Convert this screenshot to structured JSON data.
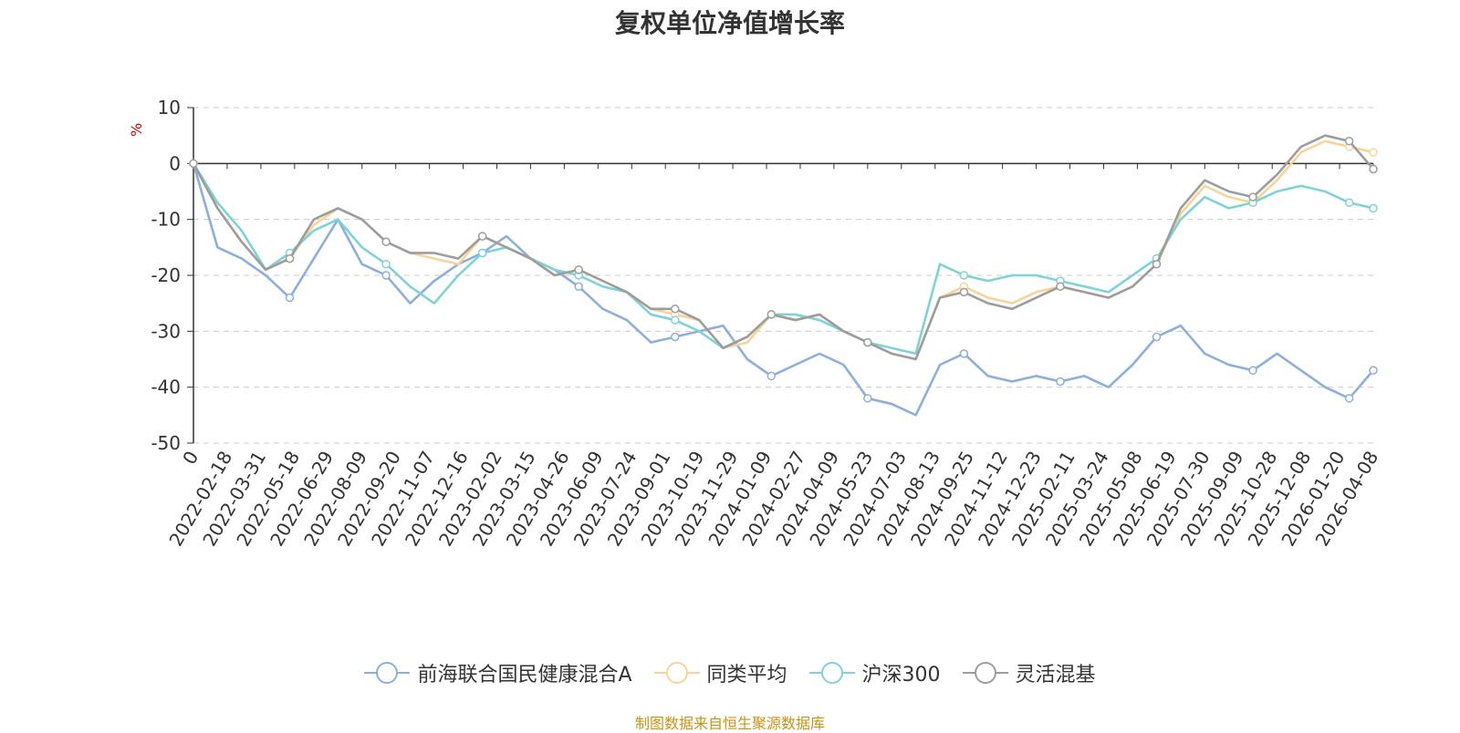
{
  "chart_data": {
    "type": "line",
    "title": "复权单位净值增长率",
    "ylabel": "%",
    "ylim": [
      -50,
      10
    ],
    "yticks": [
      "10",
      "0",
      "-10",
      "-20",
      "-30",
      "-40",
      "-50"
    ],
    "xlabels": [
      "0",
      "2022-02-18",
      "2022-03-31",
      "2022-05-18",
      "2022-06-29",
      "2022-08-09",
      "2022-09-20",
      "2022-11-07",
      "2022-12-16",
      "2023-02-02",
      "2023-03-15",
      "2023-04-26",
      "2023-06-09",
      "2023-07-24",
      "2023-09-01",
      "2023-10-19",
      "2023-11-29",
      "2024-01-09",
      "2024-02-27",
      "2024-04-09",
      "2024-05-23",
      "2024-07-03",
      "2024-08-13",
      "2024-09-25",
      "2024-11-12",
      "2024-12-23",
      "2025-02-11",
      "2025-03-24",
      "2025-05-08",
      "2025-06-19",
      "2025-07-30",
      "2025-09-09",
      "2025-10-28",
      "2025-12-08",
      "2026-01-20",
      "2026-04-08"
    ],
    "series": [
      {
        "name": "前海联合国民健康混合A",
        "color": "#8daede",
        "values": [
          0,
          -15,
          -17,
          -20,
          -24,
          -17,
          -10,
          -18,
          -20,
          -25,
          -21,
          -18,
          -16,
          -13,
          -17,
          -19,
          -22,
          -26,
          -28,
          -32,
          -31,
          -30,
          -29,
          -35,
          -38,
          -36,
          -34,
          -36,
          -42,
          -43,
          -45,
          -36,
          -34,
          -38,
          -39,
          -38,
          -39,
          -38,
          -40,
          -36,
          -31,
          -29,
          -34,
          -36,
          -37,
          -34,
          -37,
          -40,
          -42,
          -37
        ]
      },
      {
        "name": "同类平均",
        "color": "#f8d497",
        "values": [
          0,
          -8,
          -14,
          -19,
          -17,
          -11,
          -8,
          -10,
          -14,
          -16,
          -17,
          -18,
          -13,
          -15,
          -17,
          -20,
          -19,
          -21,
          -23,
          -26,
          -27,
          -28,
          -33,
          -32,
          -27,
          -28,
          -27,
          -30,
          -32,
          -34,
          -35,
          -24,
          -22,
          -24,
          -25,
          -23,
          -22,
          -23,
          -24,
          -22,
          -18,
          -9,
          -4,
          -6,
          -7,
          -3,
          2,
          4,
          3,
          2
        ]
      },
      {
        "name": "沪深300",
        "color": "#7ed3d6",
        "values": [
          0,
          -7,
          -12,
          -19,
          -16,
          -12,
          -10,
          -15,
          -18,
          -22,
          -25,
          -20,
          -16,
          -15,
          -17,
          -19,
          -20,
          -22,
          -23,
          -27,
          -28,
          -30,
          -33,
          -31,
          -27,
          -27,
          -28,
          -30,
          -32,
          -33,
          -34,
          -18,
          -20,
          -21,
          -20,
          -20,
          -21,
          -22,
          -23,
          -20,
          -17,
          -10,
          -6,
          -8,
          -7,
          -5,
          -4,
          -5,
          -7,
          -8
        ]
      },
      {
        "name": "灵活混基",
        "color": "#9d9d9d",
        "values": [
          0,
          -8,
          -14,
          -19,
          -17,
          -10,
          -8,
          -10,
          -14,
          -16,
          -16,
          -17,
          -13,
          -15,
          -17,
          -20,
          -19,
          -21,
          -23,
          -26,
          -26,
          -28,
          -33,
          -31,
          -27,
          -28,
          -27,
          -30,
          -32,
          -34,
          -35,
          -24,
          -23,
          -25,
          -26,
          -24,
          -22,
          -23,
          -24,
          -22,
          -18,
          -8,
          -3,
          -5,
          -6,
          -2,
          3,
          5,
          4,
          -1
        ]
      }
    ]
  },
  "source": "制图数据来自恒生聚源数据库"
}
